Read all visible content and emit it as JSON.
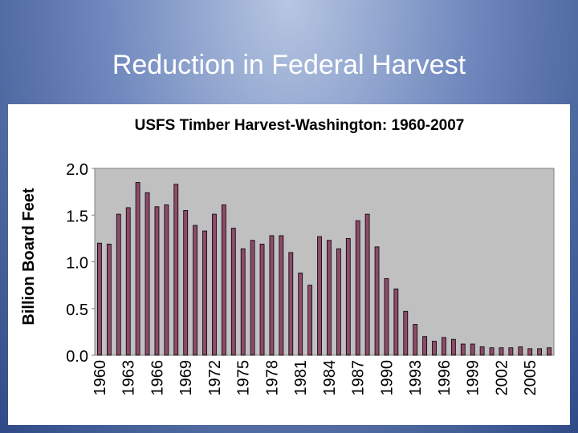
{
  "slide": {
    "title": "Reduction in Federal Harvest"
  },
  "colors": {
    "bar_fill": "#8e4a6a",
    "plot_bg": "#c0c0c0"
  },
  "chart_data": {
    "type": "bar",
    "title": "USFS Timber Harvest-Washington: 1960-2007",
    "xlabel": "",
    "ylabel": "Billion Board Feet",
    "ylim": [
      0,
      2.0
    ],
    "yticks": [
      "0.0",
      "0.5",
      "1.0",
      "1.5",
      "2.0"
    ],
    "ytick_values": [
      0,
      0.5,
      1.0,
      1.5,
      2.0
    ],
    "grid": false,
    "xtick_labels": [
      "1960",
      "1963",
      "1966",
      "1969",
      "1972",
      "1975",
      "1978",
      "1981",
      "1984",
      "1987",
      "1990",
      "1993",
      "1996",
      "1999",
      "2002",
      "2005"
    ],
    "categories": [
      "1960",
      "1961",
      "1962",
      "1963",
      "1964",
      "1965",
      "1966",
      "1967",
      "1968",
      "1969",
      "1970",
      "1971",
      "1972",
      "1973",
      "1974",
      "1975",
      "1976",
      "1977",
      "1978",
      "1979",
      "1980",
      "1981",
      "1982",
      "1983",
      "1984",
      "1985",
      "1986",
      "1987",
      "1988",
      "1989",
      "1990",
      "1991",
      "1992",
      "1993",
      "1994",
      "1995",
      "1996",
      "1997",
      "1998",
      "1999",
      "2000",
      "2001",
      "2002",
      "2003",
      "2004",
      "2005",
      "2006",
      "2007"
    ],
    "values": [
      1.2,
      1.19,
      1.51,
      1.58,
      1.85,
      1.74,
      1.59,
      1.61,
      1.83,
      1.55,
      1.39,
      1.33,
      1.51,
      1.61,
      1.36,
      1.14,
      1.23,
      1.19,
      1.28,
      1.28,
      1.1,
      0.88,
      0.75,
      1.27,
      1.23,
      1.14,
      1.25,
      1.44,
      1.51,
      1.16,
      0.82,
      0.71,
      0.47,
      0.33,
      0.2,
      0.15,
      0.19,
      0.17,
      0.12,
      0.12,
      0.09,
      0.08,
      0.08,
      0.08,
      0.09,
      0.07,
      0.07,
      0.08
    ]
  }
}
